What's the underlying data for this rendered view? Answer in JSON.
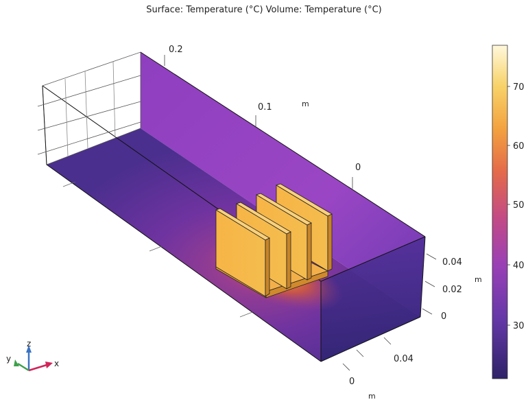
{
  "title": "Surface: Temperature (°C)  Volume: Temperature (°C)",
  "axes": {
    "x_unit": "m",
    "y_unit": "m",
    "z_unit": "m",
    "x_ticks": [
      "0",
      "0.04"
    ],
    "z_ticks": [
      "0",
      "0.02",
      "0.04"
    ],
    "y_ticks": [
      "0.2",
      "0.1",
      "0"
    ]
  },
  "colorbar": {
    "ticks": [
      "70",
      "60",
      "50",
      "40",
      "30"
    ],
    "colors": [
      "#fff8dc",
      "#f6c24a",
      "#ee7d3c",
      "#c84c7a",
      "#9a3fb7",
      "#5a35a0",
      "#2e2268"
    ]
  },
  "triad": {
    "x_label": "x",
    "y_label": "y",
    "z_label": "z",
    "x_color": "#d0245a",
    "y_color": "#3da04a",
    "z_color": "#3a72c4"
  }
}
